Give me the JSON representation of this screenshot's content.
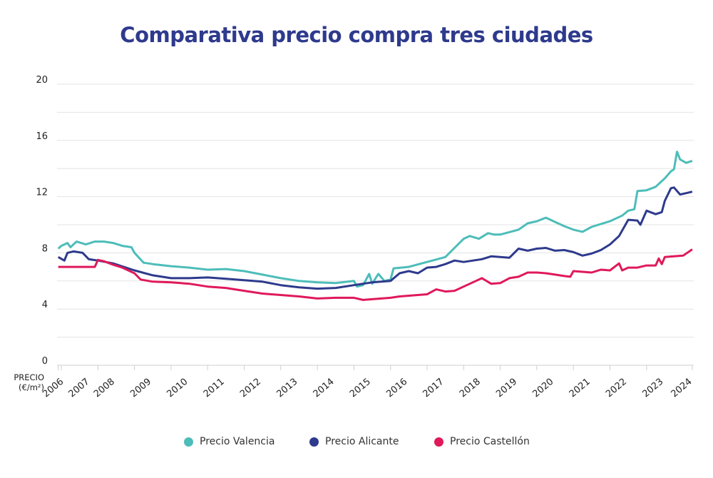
{
  "chart_data": {
    "type": "line",
    "title": "Comparativa precio compra tres ciudades",
    "ylabel": "PRECIO (€/m²)",
    "ylabel_lines": [
      "PRECIO",
      "(€/m²)"
    ],
    "xlabel": "",
    "ylim": [
      0,
      20
    ],
    "yticks": [
      0,
      4,
      8,
      12,
      16,
      20
    ],
    "ygrid_step": 2,
    "grid": true,
    "legend_position": "bottom",
    "xticks": [
      {
        "label": "2006",
        "date": "2006-12"
      },
      {
        "label": "2007",
        "date": "2007-01"
      },
      {
        "label": "2008",
        "date": "2008-01"
      },
      {
        "label": "2009",
        "date": "2009-01"
      },
      {
        "label": "2010",
        "date": "2010-01"
      },
      {
        "label": "2011",
        "date": "2011-01"
      },
      {
        "label": "2012",
        "date": "2012-01"
      },
      {
        "label": "2013",
        "date": "2013-01"
      },
      {
        "label": "2014",
        "date": "2014-01"
      },
      {
        "label": "2015",
        "date": "2015-01"
      },
      {
        "label": "2016",
        "date": "2016-01"
      },
      {
        "label": "2017",
        "date": "2017-01"
      },
      {
        "label": "2018",
        "date": "2018-01"
      },
      {
        "label": "2019",
        "date": "2019-01"
      },
      {
        "label": "2020",
        "date": "2020-01"
      },
      {
        "label": "2021",
        "date": "2021-01"
      },
      {
        "label": "2022",
        "date": "2022-01"
      },
      {
        "label": "2023",
        "date": "2023-01"
      },
      {
        "label": "2024",
        "date": "2024-04"
      }
    ],
    "series": [
      {
        "name": "Precio Valencia",
        "color": "#4dbdb9",
        "points": [
          [
            "2006-12",
            8.3
          ],
          [
            "2007-01",
            8.5
          ],
          [
            "2007-03",
            8.7
          ],
          [
            "2007-04",
            8.4
          ],
          [
            "2007-06",
            8.8
          ],
          [
            "2007-09",
            8.6
          ],
          [
            "2007-12",
            8.8
          ],
          [
            "2008-03",
            8.8
          ],
          [
            "2008-06",
            8.7
          ],
          [
            "2008-09",
            8.5
          ],
          [
            "2008-12",
            8.4
          ],
          [
            "2009-01",
            8.0
          ],
          [
            "2009-04",
            7.3
          ],
          [
            "2009-07",
            7.2
          ],
          [
            "2010-01",
            7.05
          ],
          [
            "2010-07",
            6.95
          ],
          [
            "2011-01",
            6.8
          ],
          [
            "2011-07",
            6.85
          ],
          [
            "2012-01",
            6.7
          ],
          [
            "2012-07",
            6.45
          ],
          [
            "2013-01",
            6.2
          ],
          [
            "2013-07",
            6.0
          ],
          [
            "2014-01",
            5.9
          ],
          [
            "2014-07",
            5.85
          ],
          [
            "2015-01",
            6.0
          ],
          [
            "2015-02",
            5.6
          ],
          [
            "2015-04",
            5.7
          ],
          [
            "2015-06",
            6.5
          ],
          [
            "2015-07",
            5.8
          ],
          [
            "2015-09",
            6.5
          ],
          [
            "2015-11",
            6.0
          ],
          [
            "2016-01",
            6.1
          ],
          [
            "2016-02",
            6.9
          ],
          [
            "2016-07",
            7.0
          ],
          [
            "2017-01",
            7.35
          ],
          [
            "2017-07",
            7.7
          ],
          [
            "2018-01",
            9.0
          ],
          [
            "2018-03",
            9.2
          ],
          [
            "2018-06",
            9.0
          ],
          [
            "2018-09",
            9.4
          ],
          [
            "2018-11",
            9.3
          ],
          [
            "2019-01",
            9.3
          ],
          [
            "2019-07",
            9.65
          ],
          [
            "2019-10",
            10.1
          ],
          [
            "2020-01",
            10.25
          ],
          [
            "2020-04",
            10.5
          ],
          [
            "2020-07",
            10.2
          ],
          [
            "2020-10",
            9.9
          ],
          [
            "2021-01",
            9.65
          ],
          [
            "2021-04",
            9.5
          ],
          [
            "2021-07",
            9.85
          ],
          [
            "2022-01",
            10.25
          ],
          [
            "2022-05",
            10.65
          ],
          [
            "2022-07",
            11.0
          ],
          [
            "2022-09",
            11.1
          ],
          [
            "2022-10",
            12.4
          ],
          [
            "2023-01",
            12.45
          ],
          [
            "2023-04",
            12.7
          ],
          [
            "2023-07",
            13.3
          ],
          [
            "2023-09",
            13.8
          ],
          [
            "2023-10",
            13.95
          ],
          [
            "2023-11",
            15.2
          ],
          [
            "2023-12",
            14.65
          ],
          [
            "2024-02",
            14.4
          ],
          [
            "2024-04",
            14.55
          ]
        ]
      },
      {
        "name": "Precio Alicante",
        "color": "#2e3a8c",
        "points": [
          [
            "2006-12",
            7.7
          ],
          [
            "2007-02",
            7.45
          ],
          [
            "2007-03",
            8.0
          ],
          [
            "2007-05",
            8.1
          ],
          [
            "2007-08",
            8.0
          ],
          [
            "2007-10",
            7.55
          ],
          [
            "2008-01",
            7.45
          ],
          [
            "2008-06",
            7.25
          ],
          [
            "2009-01",
            6.75
          ],
          [
            "2009-07",
            6.4
          ],
          [
            "2010-01",
            6.2
          ],
          [
            "2010-07",
            6.2
          ],
          [
            "2011-01",
            6.25
          ],
          [
            "2011-07",
            6.15
          ],
          [
            "2012-01",
            6.05
          ],
          [
            "2012-07",
            5.95
          ],
          [
            "2013-01",
            5.7
          ],
          [
            "2013-07",
            5.55
          ],
          [
            "2014-01",
            5.45
          ],
          [
            "2014-07",
            5.5
          ],
          [
            "2015-01",
            5.7
          ],
          [
            "2015-04",
            5.8
          ],
          [
            "2015-07",
            5.9
          ],
          [
            "2016-01",
            6.0
          ],
          [
            "2016-04",
            6.55
          ],
          [
            "2016-07",
            6.7
          ],
          [
            "2016-10",
            6.55
          ],
          [
            "2017-01",
            6.95
          ],
          [
            "2017-04",
            7.0
          ],
          [
            "2017-07",
            7.2
          ],
          [
            "2017-10",
            7.45
          ],
          [
            "2018-01",
            7.35
          ],
          [
            "2018-07",
            7.55
          ],
          [
            "2018-10",
            7.75
          ],
          [
            "2019-01",
            7.7
          ],
          [
            "2019-04",
            7.65
          ],
          [
            "2019-07",
            8.3
          ],
          [
            "2019-10",
            8.15
          ],
          [
            "2020-01",
            8.3
          ],
          [
            "2020-04",
            8.35
          ],
          [
            "2020-07",
            8.15
          ],
          [
            "2020-10",
            8.2
          ],
          [
            "2021-01",
            8.05
          ],
          [
            "2021-04",
            7.8
          ],
          [
            "2021-07",
            7.95
          ],
          [
            "2021-10",
            8.2
          ],
          [
            "2022-01",
            8.6
          ],
          [
            "2022-04",
            9.2
          ],
          [
            "2022-07",
            10.35
          ],
          [
            "2022-10",
            10.3
          ],
          [
            "2022-11",
            10.0
          ],
          [
            "2023-01",
            11.0
          ],
          [
            "2023-04",
            10.75
          ],
          [
            "2023-06",
            10.9
          ],
          [
            "2023-07",
            11.7
          ],
          [
            "2023-09",
            12.6
          ],
          [
            "2023-10",
            12.65
          ],
          [
            "2023-12",
            12.15
          ],
          [
            "2024-02",
            12.25
          ],
          [
            "2024-04",
            12.35
          ]
        ]
      },
      {
        "name": "Precio Castellón",
        "color": "#e0195a",
        "points": [
          [
            "2006-12",
            7.0
          ],
          [
            "2007-12",
            7.0
          ],
          [
            "2008-01",
            7.5
          ],
          [
            "2008-03",
            7.4
          ],
          [
            "2008-06",
            7.15
          ],
          [
            "2008-09",
            6.95
          ],
          [
            "2009-01",
            6.55
          ],
          [
            "2009-03",
            6.1
          ],
          [
            "2009-07",
            5.95
          ],
          [
            "2010-01",
            5.9
          ],
          [
            "2010-07",
            5.8
          ],
          [
            "2011-01",
            5.6
          ],
          [
            "2011-07",
            5.5
          ],
          [
            "2012-01",
            5.3
          ],
          [
            "2012-07",
            5.1
          ],
          [
            "2013-01",
            5.0
          ],
          [
            "2013-07",
            4.9
          ],
          [
            "2014-01",
            4.75
          ],
          [
            "2014-07",
            4.8
          ],
          [
            "2015-01",
            4.8
          ],
          [
            "2015-04",
            4.65
          ],
          [
            "2015-07",
            4.7
          ],
          [
            "2016-01",
            4.8
          ],
          [
            "2016-04",
            4.9
          ],
          [
            "2016-07",
            4.95
          ],
          [
            "2017-01",
            5.05
          ],
          [
            "2017-04",
            5.4
          ],
          [
            "2017-07",
            5.25
          ],
          [
            "2017-10",
            5.3
          ],
          [
            "2018-01",
            5.6
          ],
          [
            "2018-04",
            5.9
          ],
          [
            "2018-07",
            6.2
          ],
          [
            "2018-10",
            5.8
          ],
          [
            "2019-01",
            5.85
          ],
          [
            "2019-04",
            6.2
          ],
          [
            "2019-07",
            6.3
          ],
          [
            "2019-10",
            6.6
          ],
          [
            "2020-01",
            6.6
          ],
          [
            "2020-04",
            6.55
          ],
          [
            "2020-07",
            6.45
          ],
          [
            "2020-10",
            6.35
          ],
          [
            "2020-12",
            6.3
          ],
          [
            "2021-01",
            6.7
          ],
          [
            "2021-07",
            6.6
          ],
          [
            "2021-10",
            6.8
          ],
          [
            "2022-01",
            6.75
          ],
          [
            "2022-04",
            7.25
          ],
          [
            "2022-05",
            6.75
          ],
          [
            "2022-07",
            6.95
          ],
          [
            "2022-10",
            6.95
          ],
          [
            "2023-01",
            7.1
          ],
          [
            "2023-04",
            7.1
          ],
          [
            "2023-05",
            7.6
          ],
          [
            "2023-06",
            7.2
          ],
          [
            "2023-07",
            7.7
          ],
          [
            "2023-10",
            7.75
          ],
          [
            "2024-01",
            7.8
          ],
          [
            "2024-04",
            8.25
          ]
        ]
      }
    ]
  }
}
